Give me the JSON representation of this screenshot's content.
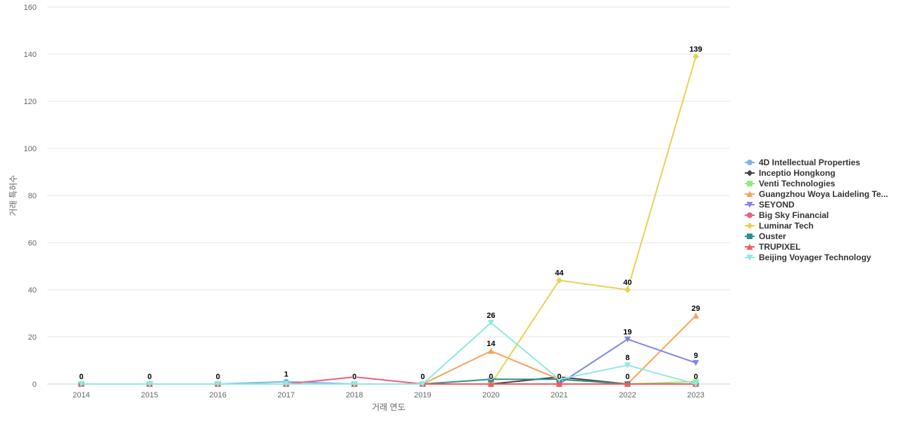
{
  "chart_data": {
    "type": "line",
    "title": "",
    "xlabel": "거래 연도",
    "ylabel": "거래 특허수",
    "ylim": [
      0,
      160
    ],
    "yticks": [
      0,
      20,
      40,
      60,
      80,
      100,
      120,
      140,
      160
    ],
    "categories": [
      "2014",
      "2015",
      "2016",
      "2017",
      "2018",
      "2019",
      "2020",
      "2021",
      "2022",
      "2023"
    ],
    "grid": true,
    "legend_position": "right",
    "series": [
      {
        "name": "4D Intellectual Properties",
        "color": "#7cb5ec",
        "marker": "circle",
        "values": [
          0,
          0,
          0,
          1,
          0,
          0,
          0,
          0,
          0,
          0
        ]
      },
      {
        "name": "Inceptio Hongkong",
        "color": "#434348",
        "marker": "diamond",
        "values": [
          0,
          0,
          0,
          0,
          0,
          0,
          0,
          3,
          0,
          0
        ]
      },
      {
        "name": "Venti Technologies",
        "color": "#90ed7d",
        "marker": "square",
        "values": [
          0,
          0,
          0,
          0,
          0,
          0,
          0,
          0,
          0,
          1
        ]
      },
      {
        "name": "Guangzhou Woya Laideling Te...",
        "color": "#f7a35c",
        "marker": "triangle",
        "values": [
          0,
          0,
          0,
          0,
          0,
          0,
          14,
          2,
          0,
          29
        ]
      },
      {
        "name": "SEYOND",
        "color": "#8085e9",
        "marker": "triangle-down",
        "values": [
          0,
          0,
          0,
          0,
          0,
          0,
          0,
          0,
          19,
          9
        ]
      },
      {
        "name": "Big Sky Financial",
        "color": "#f15c80",
        "marker": "circle",
        "values": [
          0,
          0,
          0,
          0,
          3,
          0,
          0,
          0,
          0,
          0
        ]
      },
      {
        "name": "Luminar Tech",
        "color": "#e4d354",
        "marker": "diamond",
        "values": [
          0,
          0,
          0,
          0,
          0,
          0,
          0,
          44,
          40,
          139
        ]
      },
      {
        "name": "Ouster",
        "color": "#2b908f",
        "marker": "square",
        "values": [
          0,
          0,
          0,
          0,
          0,
          0,
          2,
          2,
          0,
          0
        ]
      },
      {
        "name": "TRUPIXEL",
        "color": "#f45b5b",
        "marker": "triangle",
        "values": [
          0,
          0,
          0,
          0,
          0,
          0,
          0,
          0,
          0,
          0
        ]
      },
      {
        "name": "Beijing Voyager Technology",
        "color": "#91e8e1",
        "marker": "triangle-down",
        "values": [
          0,
          0,
          0,
          0,
          0,
          0,
          26,
          2,
          8,
          0
        ]
      }
    ],
    "data_labels": [
      {
        "category": "2014",
        "value": 0,
        "text": "0"
      },
      {
        "category": "2015",
        "value": 0,
        "text": "0"
      },
      {
        "category": "2016",
        "value": 0,
        "text": "0"
      },
      {
        "category": "2017",
        "value": 1,
        "text": "1"
      },
      {
        "category": "2018",
        "value": 0,
        "text": "0"
      },
      {
        "category": "2019",
        "value": 0,
        "text": "0"
      },
      {
        "category": "2020",
        "value": 26,
        "text": "26"
      },
      {
        "category": "2020",
        "value": 14,
        "text": "14"
      },
      {
        "category": "2020",
        "value": 0,
        "text": "0"
      },
      {
        "category": "2021",
        "value": 44,
        "text": "44"
      },
      {
        "category": "2021",
        "value": 0,
        "text": "0"
      },
      {
        "category": "2022",
        "value": 40,
        "text": "40"
      },
      {
        "category": "2022",
        "value": 19,
        "text": "19"
      },
      {
        "category": "2022",
        "value": 8,
        "text": "8"
      },
      {
        "category": "2022",
        "value": 0,
        "text": "0"
      },
      {
        "category": "2023",
        "value": 139,
        "text": "139"
      },
      {
        "category": "2023",
        "value": 29,
        "text": "29"
      },
      {
        "category": "2023",
        "value": 9,
        "text": "9"
      },
      {
        "category": "2023",
        "value": 0,
        "text": "0"
      }
    ]
  }
}
